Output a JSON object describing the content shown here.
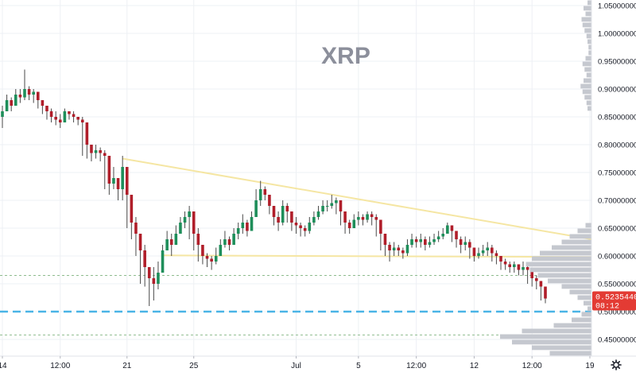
{
  "chart_data": {
    "type": "candlestick",
    "title": "XRP",
    "xlabel": "",
    "ylabel": "",
    "ylim": [
      0.42,
      1.06
    ],
    "grid": true,
    "price_ticks": [
      "1.05000000",
      "1.00000000",
      "0.95000000",
      "0.90000000",
      "0.85000000",
      "0.80000000",
      "0.75000000",
      "0.70000000",
      "0.65000000",
      "0.60000000",
      "0.55000000",
      "0.50000000",
      "0.45000000"
    ],
    "price_tick_values": [
      1.05,
      1.0,
      0.95,
      0.9,
      0.85,
      0.8,
      0.75,
      0.7,
      0.65,
      0.6,
      0.55,
      0.5,
      0.45
    ],
    "date_ticks": [
      "14",
      "12:00",
      "21",
      "25",
      "Jul",
      "5",
      "12:00",
      "12",
      "12:00",
      "19",
      "12:00"
    ],
    "date_tick_index": [
      0,
      13,
      28,
      43,
      66,
      80,
      93,
      106,
      119,
      132,
      146
    ],
    "last_price": "0.52354401",
    "countdown": "08:12",
    "closes": [
      0.86,
      0.88,
      0.87,
      0.89,
      0.885,
      0.9,
      0.89,
      0.895,
      0.88,
      0.87,
      0.86,
      0.85,
      0.845,
      0.84,
      0.86,
      0.855,
      0.85,
      0.845,
      0.84,
      0.8,
      0.785,
      0.79,
      0.785,
      0.78,
      0.73,
      0.74,
      0.72,
      0.76,
      0.71,
      0.66,
      0.64,
      0.61,
      0.58,
      0.56,
      0.55,
      0.57,
      0.61,
      0.63,
      0.62,
      0.64,
      0.66,
      0.67,
      0.68,
      0.64,
      0.62,
      0.6,
      0.595,
      0.59,
      0.6,
      0.62,
      0.63,
      0.62,
      0.64,
      0.65,
      0.66,
      0.645,
      0.67,
      0.7,
      0.72,
      0.71,
      0.69,
      0.67,
      0.66,
      0.69,
      0.68,
      0.66,
      0.655,
      0.65,
      0.645,
      0.66,
      0.67,
      0.68,
      0.69,
      0.69,
      0.695,
      0.7,
      0.68,
      0.66,
      0.65,
      0.665,
      0.67,
      0.665,
      0.675,
      0.67,
      0.665,
      0.64,
      0.62,
      0.61,
      0.615,
      0.61,
      0.605,
      0.62,
      0.63,
      0.625,
      0.63,
      0.62,
      0.625,
      0.63,
      0.635,
      0.64,
      0.655,
      0.645,
      0.63,
      0.62,
      0.625,
      0.615,
      0.6,
      0.605,
      0.61,
      0.615,
      0.605,
      0.6,
      0.59,
      0.585,
      0.58,
      0.585,
      0.575,
      0.58,
      0.575,
      0.56,
      0.555,
      0.545,
      0.52354401
    ],
    "highs": [
      0.87,
      0.89,
      0.885,
      0.9,
      0.9,
      0.935,
      0.905,
      0.9,
      0.895,
      0.88,
      0.87,
      0.865,
      0.86,
      0.855,
      0.865,
      0.86,
      0.86,
      0.85,
      0.85,
      0.81,
      0.8,
      0.8,
      0.795,
      0.79,
      0.76,
      0.76,
      0.74,
      0.78,
      0.76,
      0.69,
      0.67,
      0.64,
      0.62,
      0.58,
      0.58,
      0.59,
      0.62,
      0.645,
      0.64,
      0.655,
      0.67,
      0.68,
      0.69,
      0.68,
      0.65,
      0.62,
      0.605,
      0.6,
      0.615,
      0.63,
      0.645,
      0.635,
      0.65,
      0.66,
      0.675,
      0.665,
      0.68,
      0.72,
      0.735,
      0.725,
      0.71,
      0.69,
      0.68,
      0.7,
      0.695,
      0.68,
      0.67,
      0.66,
      0.655,
      0.67,
      0.68,
      0.69,
      0.7,
      0.7,
      0.71,
      0.705,
      0.7,
      0.68,
      0.665,
      0.675,
      0.68,
      0.675,
      0.68,
      0.68,
      0.675,
      0.665,
      0.64,
      0.625,
      0.625,
      0.62,
      0.615,
      0.63,
      0.64,
      0.635,
      0.64,
      0.635,
      0.635,
      0.64,
      0.645,
      0.65,
      0.66,
      0.655,
      0.645,
      0.635,
      0.635,
      0.63,
      0.615,
      0.615,
      0.62,
      0.625,
      0.62,
      0.61,
      0.6,
      0.595,
      0.59,
      0.59,
      0.585,
      0.59,
      0.585,
      0.575,
      0.565,
      0.555,
      0.545
    ],
    "lows": [
      0.83,
      0.86,
      0.86,
      0.87,
      0.875,
      0.88,
      0.88,
      0.875,
      0.865,
      0.855,
      0.845,
      0.84,
      0.835,
      0.83,
      0.84,
      0.845,
      0.84,
      0.835,
      0.78,
      0.775,
      0.77,
      0.775,
      0.77,
      0.72,
      0.71,
      0.72,
      0.7,
      0.7,
      0.65,
      0.63,
      0.6,
      0.55,
      0.545,
      0.51,
      0.52,
      0.54,
      0.57,
      0.61,
      0.6,
      0.62,
      0.64,
      0.65,
      0.63,
      0.61,
      0.59,
      0.585,
      0.58,
      0.575,
      0.585,
      0.6,
      0.615,
      0.61,
      0.62,
      0.63,
      0.64,
      0.635,
      0.645,
      0.67,
      0.69,
      0.7,
      0.675,
      0.655,
      0.645,
      0.655,
      0.66,
      0.645,
      0.64,
      0.635,
      0.635,
      0.64,
      0.655,
      0.665,
      0.675,
      0.68,
      0.685,
      0.675,
      0.655,
      0.64,
      0.64,
      0.65,
      0.655,
      0.655,
      0.66,
      0.655,
      0.635,
      0.61,
      0.6,
      0.59,
      0.6,
      0.6,
      0.595,
      0.6,
      0.615,
      0.615,
      0.615,
      0.61,
      0.615,
      0.62,
      0.625,
      0.63,
      0.64,
      0.625,
      0.615,
      0.605,
      0.61,
      0.595,
      0.59,
      0.595,
      0.6,
      0.6,
      0.59,
      0.585,
      0.575,
      0.575,
      0.57,
      0.57,
      0.565,
      0.565,
      0.55,
      0.545,
      0.54,
      0.52,
      0.515
    ],
    "trendlines": [
      {
        "from": [
          27,
          0.775
        ],
        "to": [
          136,
          0.625
        ],
        "color": "#f5e6a3"
      },
      {
        "from": [
          36,
          0.601
        ],
        "to": [
          136,
          0.598
        ],
        "color": "#f5e6a3"
      }
    ],
    "horizontal_levels": [
      {
        "value": 0.565,
        "color": "#8fbc8f",
        "style": "dotted"
      },
      {
        "value": 0.5,
        "color": "#4ab4e6",
        "style": "dashed"
      },
      {
        "value": 0.458,
        "color": "#8fbc8f",
        "style": "dotted"
      }
    ],
    "colors": {
      "up": "#1e8e5a",
      "down": "#b01e2a",
      "wick": "#4a4a4a",
      "grid": "#eef0f4",
      "volume_profile": "#c5c8cf",
      "badge": "#e33b34"
    },
    "volume_profile": [
      {
        "price": 1.055,
        "vol": 4
      },
      {
        "price": 1.045,
        "vol": 8
      },
      {
        "price": 1.035,
        "vol": 6
      },
      {
        "price": 1.025,
        "vol": 10
      },
      {
        "price": 1.015,
        "vol": 9
      },
      {
        "price": 1.005,
        "vol": 7
      },
      {
        "price": 0.995,
        "vol": 5
      },
      {
        "price": 0.985,
        "vol": 4
      },
      {
        "price": 0.975,
        "vol": 3
      },
      {
        "price": 0.965,
        "vol": 3
      },
      {
        "price": 0.955,
        "vol": 6
      },
      {
        "price": 0.945,
        "vol": 9
      },
      {
        "price": 0.935,
        "vol": 7
      },
      {
        "price": 0.925,
        "vol": 5
      },
      {
        "price": 0.915,
        "vol": 8
      },
      {
        "price": 0.905,
        "vol": 11
      },
      {
        "price": 0.895,
        "vol": 9
      },
      {
        "price": 0.885,
        "vol": 7
      },
      {
        "price": 0.875,
        "vol": 5
      },
      {
        "price": 0.865,
        "vol": 4
      },
      {
        "price": 0.655,
        "vol": 6
      },
      {
        "price": 0.645,
        "vol": 14
      },
      {
        "price": 0.635,
        "vol": 22
      },
      {
        "price": 0.625,
        "vol": 30
      },
      {
        "price": 0.615,
        "vol": 40
      },
      {
        "price": 0.605,
        "vol": 52
      },
      {
        "price": 0.595,
        "vol": 60
      },
      {
        "price": 0.585,
        "vol": 66
      },
      {
        "price": 0.575,
        "vol": 62
      },
      {
        "price": 0.565,
        "vol": 54
      },
      {
        "price": 0.555,
        "vol": 44
      },
      {
        "price": 0.545,
        "vol": 30
      },
      {
        "price": 0.535,
        "vol": 22
      },
      {
        "price": 0.525,
        "vol": 14
      },
      {
        "price": 0.515,
        "vol": 8
      },
      {
        "price": 0.505,
        "vol": 4
      },
      {
        "price": 0.495,
        "vol": 10
      },
      {
        "price": 0.485,
        "vol": 20
      },
      {
        "price": 0.475,
        "vol": 38
      },
      {
        "price": 0.465,
        "vol": 70
      },
      {
        "price": 0.455,
        "vol": 92
      },
      {
        "price": 0.445,
        "vol": 80
      },
      {
        "price": 0.435,
        "vol": 60
      },
      {
        "price": 0.425,
        "vol": 42
      }
    ]
  }
}
